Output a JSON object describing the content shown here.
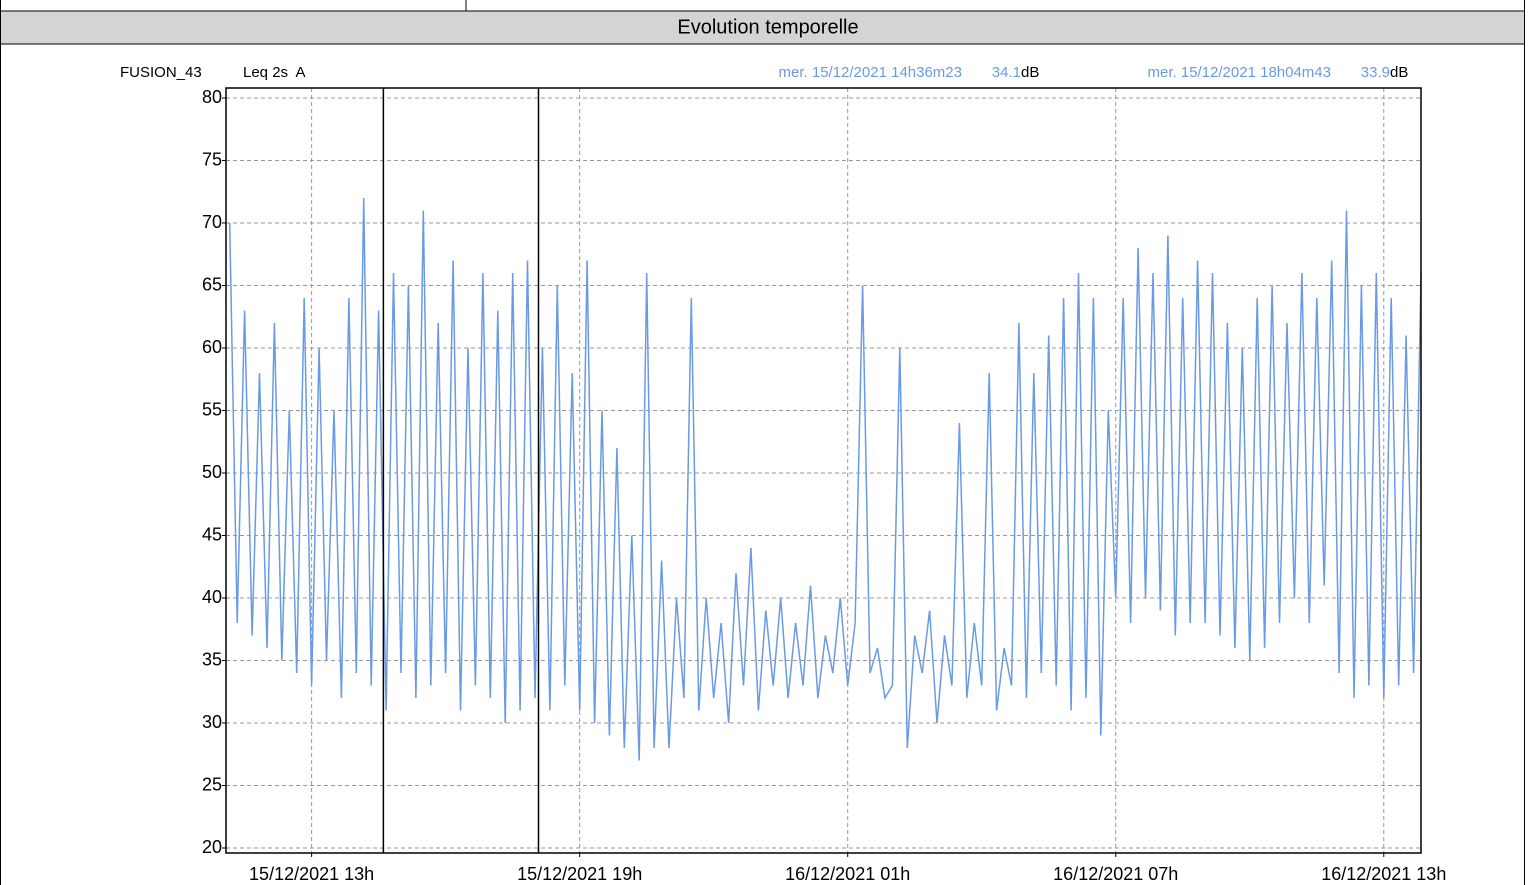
{
  "header": {
    "title": "Evolution temporelle"
  },
  "chart_data": {
    "type": "line",
    "source": "FUSION_43",
    "measure": "Leq 2s  A",
    "x": [
      "2021-12-15T11:10",
      "2021-12-15T11:20",
      "2021-12-15T11:30",
      "2021-12-15T11:40",
      "2021-12-15T11:50",
      "2021-12-15T12:00",
      "2021-12-15T12:10",
      "2021-12-15T12:20",
      "2021-12-15T12:30",
      "2021-12-15T12:40",
      "2021-12-15T12:50",
      "2021-12-15T13:00",
      "2021-12-15T13:10",
      "2021-12-15T13:20",
      "2021-12-15T13:30",
      "2021-12-15T13:40",
      "2021-12-15T13:50",
      "2021-12-15T14:00",
      "2021-12-15T14:10",
      "2021-12-15T14:20",
      "2021-12-15T14:30",
      "2021-12-15T14:40",
      "2021-12-15T14:50",
      "2021-12-15T15:00",
      "2021-12-15T15:10",
      "2021-12-15T15:20",
      "2021-12-15T15:30",
      "2021-12-15T15:40",
      "2021-12-15T15:50",
      "2021-12-15T16:00",
      "2021-12-15T16:10",
      "2021-12-15T16:20",
      "2021-12-15T16:30",
      "2021-12-15T16:40",
      "2021-12-15T16:50",
      "2021-12-15T17:00",
      "2021-12-15T17:10",
      "2021-12-15T17:20",
      "2021-12-15T17:30",
      "2021-12-15T17:40",
      "2021-12-15T17:50",
      "2021-12-15T18:00",
      "2021-12-15T18:10",
      "2021-12-15T18:20",
      "2021-12-15T18:30",
      "2021-12-15T18:40",
      "2021-12-15T18:50",
      "2021-12-15T19:00",
      "2021-12-15T19:10",
      "2021-12-15T19:20",
      "2021-12-15T19:30",
      "2021-12-15T19:40",
      "2021-12-15T19:50",
      "2021-12-15T20:00",
      "2021-12-15T20:10",
      "2021-12-15T20:20",
      "2021-12-15T20:30",
      "2021-12-15T20:40",
      "2021-12-15T20:50",
      "2021-12-15T21:00",
      "2021-12-15T21:10",
      "2021-12-15T21:20",
      "2021-12-15T21:30",
      "2021-12-15T21:40",
      "2021-12-15T21:50",
      "2021-12-15T22:00",
      "2021-12-15T22:10",
      "2021-12-15T22:20",
      "2021-12-15T22:30",
      "2021-12-15T22:40",
      "2021-12-15T22:50",
      "2021-12-15T23:00",
      "2021-12-15T23:10",
      "2021-12-15T23:20",
      "2021-12-15T23:30",
      "2021-12-15T23:40",
      "2021-12-15T23:50",
      "2021-12-16T00:00",
      "2021-12-16T00:10",
      "2021-12-16T00:20",
      "2021-12-16T00:30",
      "2021-12-16T00:40",
      "2021-12-16T00:50",
      "2021-12-16T01:00",
      "2021-12-16T01:10",
      "2021-12-16T01:20",
      "2021-12-16T01:30",
      "2021-12-16T01:40",
      "2021-12-16T01:50",
      "2021-12-16T02:00",
      "2021-12-16T02:10",
      "2021-12-16T02:20",
      "2021-12-16T02:30",
      "2021-12-16T02:40",
      "2021-12-16T02:50",
      "2021-12-16T03:00",
      "2021-12-16T03:10",
      "2021-12-16T03:20",
      "2021-12-16T03:30",
      "2021-12-16T03:40",
      "2021-12-16T03:50",
      "2021-12-16T04:00",
      "2021-12-16T04:10",
      "2021-12-16T04:20",
      "2021-12-16T04:30",
      "2021-12-16T04:40",
      "2021-12-16T04:50",
      "2021-12-16T05:00",
      "2021-12-16T05:10",
      "2021-12-16T05:20",
      "2021-12-16T05:30",
      "2021-12-16T05:40",
      "2021-12-16T05:50",
      "2021-12-16T06:00",
      "2021-12-16T06:10",
      "2021-12-16T06:20",
      "2021-12-16T06:30",
      "2021-12-16T06:40",
      "2021-12-16T06:50",
      "2021-12-16T07:00",
      "2021-12-16T07:10",
      "2021-12-16T07:20",
      "2021-12-16T07:30",
      "2021-12-16T07:40",
      "2021-12-16T07:50",
      "2021-12-16T08:00",
      "2021-12-16T08:10",
      "2021-12-16T08:20",
      "2021-12-16T08:30",
      "2021-12-16T08:40",
      "2021-12-16T08:50",
      "2021-12-16T09:00",
      "2021-12-16T09:10",
      "2021-12-16T09:20",
      "2021-12-16T09:30",
      "2021-12-16T09:40",
      "2021-12-16T09:50",
      "2021-12-16T10:00",
      "2021-12-16T10:10",
      "2021-12-16T10:20",
      "2021-12-16T10:30",
      "2021-12-16T10:40",
      "2021-12-16T10:50",
      "2021-12-16T11:00",
      "2021-12-16T11:10",
      "2021-12-16T11:20",
      "2021-12-16T11:30",
      "2021-12-16T11:40",
      "2021-12-16T11:50",
      "2021-12-16T12:00",
      "2021-12-16T12:10",
      "2021-12-16T12:20",
      "2021-12-16T12:30",
      "2021-12-16T12:40",
      "2021-12-16T12:50",
      "2021-12-16T13:00",
      "2021-12-16T13:10",
      "2021-12-16T13:20",
      "2021-12-16T13:30",
      "2021-12-16T13:40",
      "2021-12-16T13:50"
    ],
    "series": [
      {
        "color": "#6a9ae6",
        "values": [
          70,
          38,
          63,
          37,
          58,
          36,
          62,
          35,
          55,
          34,
          64,
          33,
          60,
          35,
          55,
          32,
          64,
          34,
          72,
          33,
          63,
          31,
          66,
          34,
          65,
          32,
          71,
          33,
          62,
          34,
          67,
          31,
          60,
          33,
          66,
          32,
          63,
          30,
          66,
          31,
          67,
          32,
          60,
          31,
          65,
          33,
          58,
          31,
          67,
          30,
          55,
          29,
          52,
          28,
          45,
          27,
          66,
          28,
          43,
          28,
          40,
          32,
          64,
          31,
          40,
          32,
          38,
          30,
          42,
          33,
          44,
          31,
          39,
          33,
          40,
          32,
          38,
          33,
          41,
          32,
          37,
          34,
          40,
          33,
          38,
          65,
          34,
          36,
          32,
          33,
          60,
          28,
          37,
          34,
          39,
          30,
          37,
          33,
          54,
          32,
          38,
          33,
          58,
          31,
          36,
          33,
          62,
          32,
          58,
          34,
          61,
          33,
          64,
          31,
          66,
          32,
          64,
          29,
          55,
          40,
          64,
          38,
          68,
          40,
          66,
          39,
          69,
          37,
          64,
          38,
          67,
          38,
          66,
          37,
          62,
          36,
          60,
          35,
          64,
          36,
          65,
          38,
          62,
          40,
          66,
          38,
          64,
          41,
          67,
          34,
          71,
          32,
          65,
          33,
          66,
          32,
          64,
          33,
          61,
          34,
          66
        ]
      }
    ],
    "xlim": [
      "2021-12-15T11:05",
      "2021-12-16T13:50"
    ],
    "xticks": [
      {
        "value": "2021-12-15T13:00",
        "label": "15/12/2021 13h"
      },
      {
        "value": "2021-12-15T19:00",
        "label": "15/12/2021 19h"
      },
      {
        "value": "2021-12-16T01:00",
        "label": "16/12/2021 01h"
      },
      {
        "value": "2021-12-16T07:00",
        "label": "16/12/2021 07h"
      },
      {
        "value": "2021-12-16T13:00",
        "label": "16/12/2021 13h"
      }
    ],
    "ylim": [
      19.6,
      80.8
    ],
    "yticks": [
      20,
      25,
      30,
      35,
      40,
      45,
      50,
      55,
      60,
      65,
      70,
      75,
      80
    ],
    "grid": true,
    "cursors": [
      {
        "x": "2021-12-15T14:36:23",
        "label": "mer. 15/12/2021 14h36m23",
        "value": 34.1,
        "unit": "dB"
      },
      {
        "x": "2021-12-15T18:04:43",
        "label": "mer. 15/12/2021 18h04m43",
        "value": 33.9,
        "unit": "dB"
      }
    ]
  }
}
